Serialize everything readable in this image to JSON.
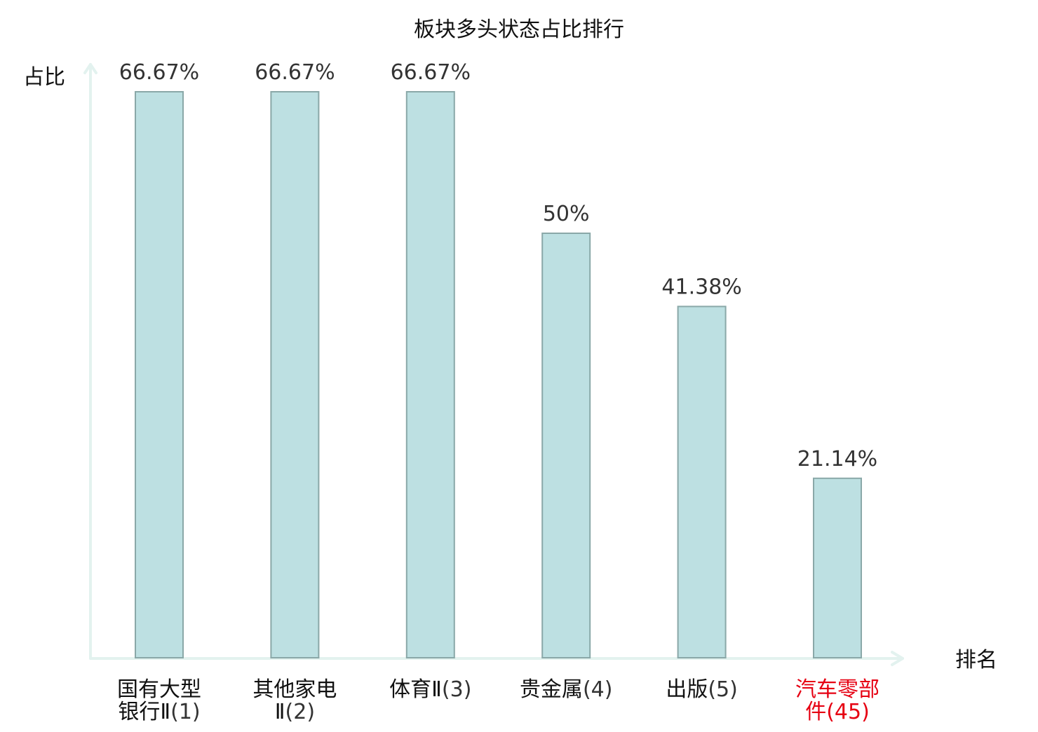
{
  "chart_data": {
    "type": "bar",
    "title": "板块多头状态占比排行",
    "ylabel": "占比",
    "xlabel": "排名",
    "ylim": [
      0,
      70
    ],
    "categories": [
      {
        "name_lines": [
          "国有大型",
          "银行Ⅱ"
        ],
        "rank": "(1)",
        "highlight": false
      },
      {
        "name_lines": [
          "其他家电",
          "Ⅱ"
        ],
        "rank": "(2)",
        "highlight": false
      },
      {
        "name_lines": [
          "体育Ⅱ"
        ],
        "rank": "(3)",
        "highlight": false
      },
      {
        "name_lines": [
          "贵金属"
        ],
        "rank": "(4)",
        "highlight": false
      },
      {
        "name_lines": [
          "出版"
        ],
        "rank": "(5)",
        "highlight": false
      },
      {
        "name_lines": [
          "汽车零部",
          "件"
        ],
        "rank": "(45)",
        "highlight": true
      }
    ],
    "values": [
      66.67,
      66.67,
      66.67,
      50,
      41.38,
      21.14
    ],
    "value_labels": [
      "66.67%",
      "66.67%",
      "66.67%",
      "50%",
      "41.38%",
      "21.14%"
    ],
    "colors": {
      "bar_fill": "#bde0e2",
      "bar_stroke": "#8aa8a8",
      "axis": "#e3f2ef",
      "category_text": "#111111",
      "rank_text": "#333333",
      "highlight_text": "#e60012"
    }
  }
}
